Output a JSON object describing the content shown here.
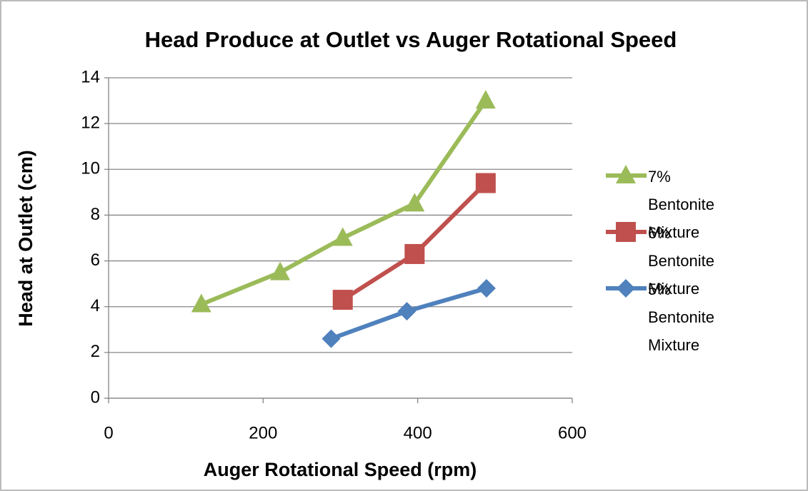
{
  "chart_data": {
    "type": "line",
    "title": "Head Produce at Outlet vs Auger Rotational Speed",
    "xlabel": "Auger Rotational Speed (rpm)",
    "ylabel": "Head at Outlet (cm)",
    "xlim": [
      0,
      600
    ],
    "xticks": [
      0,
      200,
      400,
      600
    ],
    "ylim": [
      0,
      14
    ],
    "yticks": [
      0,
      2,
      4,
      6,
      8,
      10,
      12,
      14
    ],
    "grid": true,
    "legend": "right",
    "series": [
      {
        "name": "7% Bentonite Mixture",
        "color": "#9bbb59",
        "marker": "triangle",
        "x": [
          120,
          222,
          303,
          396,
          488
        ],
        "values": [
          4.1,
          5.5,
          7,
          8.5,
          13
        ]
      },
      {
        "name": "6% Bentonite Mixture",
        "color": "#c0504d",
        "marker": "square",
        "x": [
          303,
          396,
          488
        ],
        "values": [
          4.3,
          6.3,
          9.4
        ]
      },
      {
        "name": "5% Bentonite Mixture",
        "color": "#4f81bd",
        "marker": "diamond",
        "x": [
          288,
          386,
          489
        ],
        "values": [
          2.6,
          3.8,
          4.8
        ]
      }
    ]
  }
}
